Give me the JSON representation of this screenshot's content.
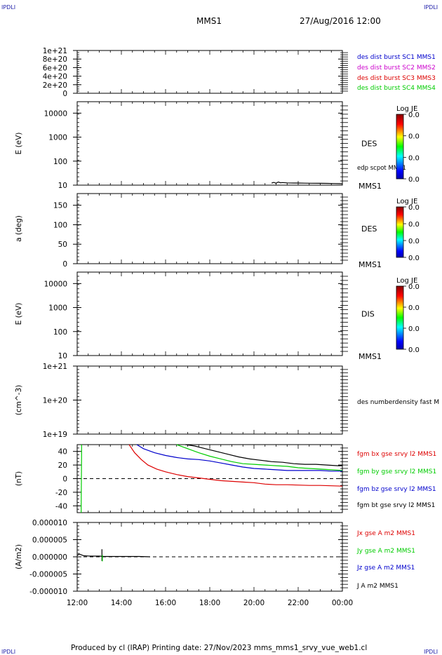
{
  "header": {
    "corner_tl": "IPDLI",
    "corner_tr": "IPDLI",
    "corner_bl": "IPDLI",
    "corner_br": "IPDLI",
    "spacecraft": "MMS1",
    "datetime": "27/Aug/2016 12:00"
  },
  "footer": {
    "credit": "Produced by cl (IRAP)   Printing date: 27/Nov/2023   mms_mms1_srvy_vue_web1.cl"
  },
  "colors": {
    "blue": "#0000cc",
    "magenta": "#cc00cc",
    "red": "#dd0000",
    "green": "#00cc00",
    "black": "#000000"
  },
  "chart_data": [
    {
      "type": "line",
      "id": "dist",
      "ylabel": "",
      "yticks": [
        "1e+21",
        "8e+20",
        "6e+20",
        "4e+20",
        "2e+20",
        "0"
      ],
      "ylim": [
        0,
        1e+21
      ],
      "zero_line": true,
      "legend": [
        {
          "text": "des dist burst SC1 MMS1",
          "color": "#0000cc"
        },
        {
          "text": "des dist burst SC2 MMS2",
          "color": "#cc00cc"
        },
        {
          "text": "des dist burst SC3 MMS3",
          "color": "#dd0000"
        },
        {
          "text": "des dist burst SC4 MMS4",
          "color": "#00cc00"
        }
      ],
      "series": []
    },
    {
      "type": "heatmap",
      "id": "des-energy",
      "ylabel": "E (eV)",
      "yscale": "log",
      "yticks": [
        "10000",
        "1000",
        "100",
        "10"
      ],
      "ylim": [
        10,
        30000
      ],
      "instrument": "DES",
      "overlay_label": "edp scpot MMS1",
      "bottom_label": "MMS1",
      "colorbar": {
        "title": "Log JE",
        "ticks": [
          "0.0",
          "0.0",
          "0.0",
          "0.0"
        ]
      },
      "series": [
        {
          "name": "edp scpot MMS1",
          "color": "#000000",
          "x": [
            20.8,
            20.9,
            21.0,
            21.1,
            21.2,
            21.3,
            21.5,
            21.8,
            22.0,
            22.3,
            22.6,
            23.0,
            23.3,
            23.6,
            23.9,
            24.0
          ],
          "y": [
            12.2,
            13.0,
            12.0,
            13.5,
            12.6,
            12.8,
            12.4,
            12.2,
            12.2,
            12.1,
            12.0,
            11.9,
            11.8,
            11.7,
            11.5,
            11.4
          ]
        }
      ]
    },
    {
      "type": "heatmap",
      "id": "des-pitch",
      "ylabel": "a (deg)",
      "yticks": [
        "150",
        "100",
        "50",
        "0"
      ],
      "ylim": [
        0,
        180
      ],
      "instrument": "DES",
      "bottom_label": "MMS1",
      "colorbar": {
        "title": "Log JE",
        "ticks": [
          "0.0",
          "0.0",
          "0.0",
          "0.0"
        ]
      },
      "series": []
    },
    {
      "type": "heatmap",
      "id": "dis-energy",
      "ylabel": "E (eV)",
      "yscale": "log",
      "yticks": [
        "10000",
        "1000",
        "100",
        "10"
      ],
      "ylim": [
        10,
        30000
      ],
      "instrument": "DIS",
      "bottom_label": "MMS1",
      "colorbar": {
        "title": "Log JE",
        "ticks": [
          "0.0",
          "0.0",
          "0.0",
          "0.0"
        ]
      },
      "series": []
    },
    {
      "type": "line",
      "id": "density",
      "ylabel": "(cm^-3)",
      "yscale": "log",
      "yticks": [
        "1e+21",
        "1e+20",
        "1e+19"
      ],
      "ylim": [
        1e+19,
        1e+21
      ],
      "legend": [
        {
          "text": "des numberdensity fast M",
          "color": "#000000"
        }
      ],
      "series": []
    },
    {
      "type": "line",
      "id": "fgm",
      "ylabel": "(nT)",
      "yticks": [
        "40",
        "20",
        "0",
        "-20",
        "-40"
      ],
      "ylim": [
        -50,
        50
      ],
      "zero_line": true,
      "legend": [
        {
          "text": "fgm bx gse srvy l2 MMS1",
          "color": "#dd0000"
        },
        {
          "text": "fgm by gse srvy l2 MMS1",
          "color": "#00cc00"
        },
        {
          "text": "fgm bz gse srvy l2 MMS1",
          "color": "#0000cc"
        },
        {
          "text": "fgm bt gse srvy l2 MMS1",
          "color": "#000000"
        }
      ],
      "series": [
        {
          "name": "fgm bx gse srvy l2 MMS1",
          "color": "#dd0000",
          "x": [
            14.35,
            14.6,
            14.9,
            15.2,
            15.6,
            16.0,
            16.5,
            17.0,
            17.5,
            18.0,
            18.5,
            19.0,
            19.5,
            20.0,
            20.5,
            21.0,
            21.5,
            22.0,
            22.5,
            23.0,
            23.5,
            24.0
          ],
          "y": [
            50,
            38,
            28,
            20,
            14,
            10,
            6,
            3,
            1,
            -1,
            -3,
            -4,
            -5,
            -6,
            -8,
            -9,
            -9,
            -9.5,
            -10,
            -10,
            -10.5,
            -11
          ]
        },
        {
          "name": "fgm by gse srvy l2 MMS1",
          "color": "#00cc00",
          "x": [
            12.18,
            12.18,
            12.2,
            12.2
          ],
          "y": [
            -50,
            -38,
            38,
            50
          ]
        },
        {
          "name": "fgm by gse srvy l2 MMS1 (late)",
          "color": "#00cc00",
          "x": [
            16.5,
            17.0,
            17.5,
            18.0,
            18.5,
            19.0,
            19.5,
            20.0,
            20.5,
            21.0,
            21.5,
            22.0,
            22.5,
            23.0,
            23.5,
            24.0
          ],
          "y": [
            50,
            44,
            38,
            33,
            29,
            25,
            22,
            21,
            20,
            19,
            18,
            16,
            15,
            14,
            13,
            12
          ]
        },
        {
          "name": "fgm bz gse srvy l2 MMS1",
          "color": "#0000cc",
          "x": [
            14.7,
            15.0,
            15.5,
            16.0,
            16.5,
            17.0,
            17.5,
            18.0,
            18.5,
            19.0,
            19.5,
            20.0,
            20.5,
            21.0,
            21.5,
            22.0,
            22.5,
            23.0,
            23.5,
            24.0
          ],
          "y": [
            50,
            44,
            38,
            34,
            31,
            29,
            28,
            26,
            23,
            20,
            17,
            15,
            14,
            13,
            12,
            12,
            12,
            12,
            11,
            11
          ]
        },
        {
          "name": "fgm bt gse srvy l2 MMS1",
          "color": "#000000",
          "x": [
            16.9,
            17.3,
            17.8,
            18.3,
            18.8,
            19.3,
            19.8,
            20.3,
            20.8,
            21.3,
            21.8,
            22.3,
            22.8,
            23.3,
            23.8,
            24.0
          ],
          "y": [
            50,
            48,
            44,
            40,
            36,
            32,
            29,
            27,
            25,
            24,
            22,
            21,
            21,
            20,
            19,
            19
          ]
        }
      ]
    },
    {
      "type": "line",
      "id": "current",
      "ylabel": "(A/m2)",
      "yticks": [
        "0.000010",
        "0.000005",
        "0.000000",
        "-0.000005",
        "-0.000010"
      ],
      "ylim": [
        -1e-05,
        1e-05
      ],
      "zero_line": true,
      "xticks": [
        "12:00",
        "14:00",
        "16:00",
        "18:00",
        "20:00",
        "22:00",
        "00:00"
      ],
      "xlim": [
        12,
        24
      ],
      "legend": [
        {
          "text": "Jx gse A m2 MMS1",
          "color": "#dd0000"
        },
        {
          "text": "Jy gse A m2 MMS1",
          "color": "#00cc00"
        },
        {
          "text": "Jz gse A m2 MMS1",
          "color": "#0000cc"
        },
        {
          "text": "J A m2 MMS1",
          "color": "#000000"
        }
      ],
      "series": [
        {
          "name": "J A m2 MMS1",
          "color": "#000000",
          "x": [
            12.0,
            12.1,
            12.3,
            12.6,
            13.0,
            13.2,
            13.4,
            13.8,
            14.2,
            14.8,
            15.3
          ],
          "y": [
            4e-07,
            8e-07,
            3e-07,
            2e-07,
            2e-07,
            1e-07,
            1e-07,
            1e-07,
            1e-07,
            1e-07,
            0.0
          ]
        },
        {
          "name": "J A m2 MMS1 spike",
          "color": "#000000",
          "x": [
            13.12,
            13.12
          ],
          "y": [
            -1.2e-06,
            2.2e-06
          ]
        },
        {
          "name": "Jy gse A m2 MMS1 spike",
          "color": "#00cc00",
          "x": [
            13.14,
            13.14
          ],
          "y": [
            -1.3e-06,
            5e-07
          ]
        }
      ]
    }
  ]
}
